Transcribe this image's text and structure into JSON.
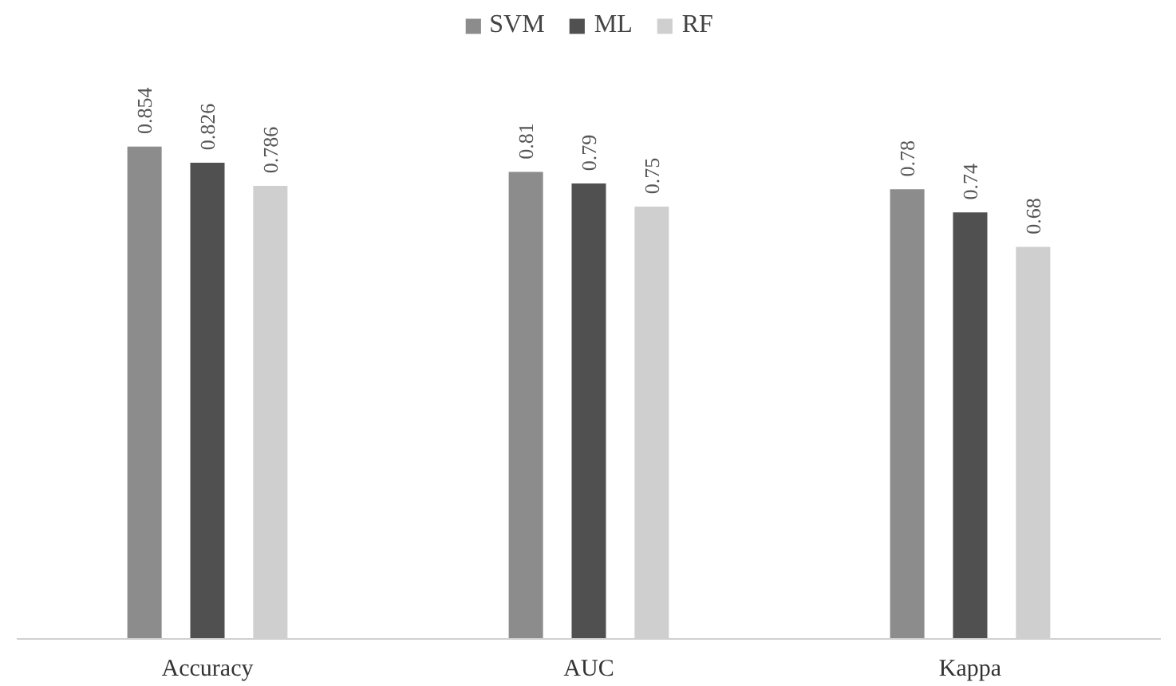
{
  "chart_data": {
    "type": "bar",
    "categories": [
      "Accuracy",
      "AUC",
      "Kappa"
    ],
    "series": [
      {
        "name": "SVM",
        "color": "#8c8c8c",
        "values": [
          0.854,
          0.81,
          0.78
        ]
      },
      {
        "name": "ML",
        "color": "#505050",
        "values": [
          0.826,
          0.79,
          0.74
        ]
      },
      {
        "name": "RF",
        "color": "#cfcfcf",
        "values": [
          0.786,
          0.75,
          0.68
        ]
      }
    ],
    "data_labels": true,
    "legend": "top",
    "grid": false
  }
}
